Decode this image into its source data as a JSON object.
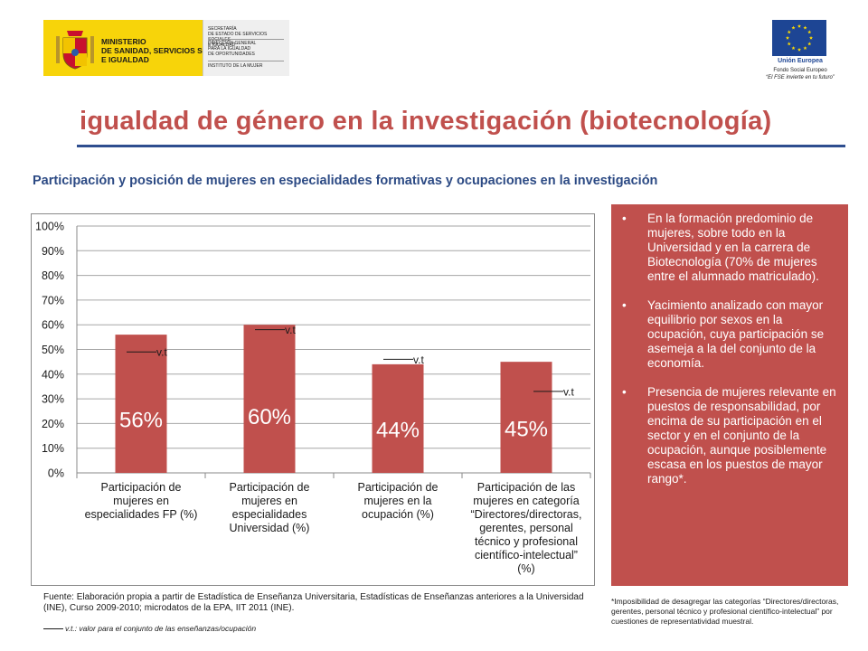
{
  "header": {
    "ministry": {
      "lines": [
        "MINISTERIO",
        "DE SANIDAD, SERVICIOS SOCIALES",
        "E IGUALDAD"
      ],
      "secretaria": [
        "SECRETARÍA",
        "DE ESTADO DE SERVICIOS SOCIALES",
        "E IGUALDAD"
      ],
      "direccion": [
        "DIRECCIÓN GENERAL",
        "PARA LA IGUALDAD",
        "DE OPORTUNIDADES"
      ],
      "instituto": "INSTITUTO DE LA MUJER",
      "color": "#f7d40a"
    },
    "eu": {
      "name": "Unión Europea",
      "fund": "Fondo Social Europeo",
      "motto": "“El FSE invierte en tu futuro”",
      "flag_color": "#1d4594",
      "star_color": "#ffdd00"
    }
  },
  "title": "igualdad de género en la investigación (biotecnología)",
  "subtitle": "Participación y posición de mujeres en especialidades formativas y ocupaciones en la investigación",
  "chart_data": {
    "type": "bar",
    "categories": [
      [
        "Participación de",
        "mujeres en",
        "especialidades FP (%)"
      ],
      [
        "Participación de",
        "mujeres en",
        "especialidades",
        "Universidad (%)"
      ],
      [
        "Participación de",
        "mujeres en la",
        "ocupación (%)"
      ],
      [
        "Participación de las",
        "mujeres  en categoría",
        "“Directores/directoras,",
        "gerentes,  personal",
        "técnico y profesional",
        "científico-intelectual”",
        "(%)"
      ]
    ],
    "values": [
      56,
      60,
      44,
      45
    ],
    "data_labels": [
      "56%",
      "60%",
      "44%",
      "45%"
    ],
    "reference_values": [
      49,
      58,
      46,
      33
    ],
    "reference_label": "v.t",
    "yticks": [
      "0%",
      "10%",
      "20%",
      "30%",
      "40%",
      "50%",
      "60%",
      "70%",
      "80%",
      "90%",
      "100%"
    ],
    "ylim": [
      0,
      100
    ],
    "grid": true,
    "bar_color": "#c0504d"
  },
  "bullets": [
    "En la formación predominio de mujeres, sobre todo en la Universidad y en la carrera de Biotecnología (70% de mujeres entre el alumnado matriculado).",
    "Yacimiento analizado con mayor equilibrio por sexos en la ocupación, cuya participación se asemeja a la del conjunto de la economía.",
    "Presencia de mujeres relevante en puestos de responsabilidad, por encima de su participación en el sector y en el conjunto de la ocupación, aunque posiblemente escasa en los puestos de mayor rango*."
  ],
  "bullet_glyph": "•",
  "panel_color": "#c0504d",
  "source": "Fuente: Elaboración propia a partir de Estadística de Enseñanza Universitaria, Estadísticas de Enseñanzas anteriores a la Universidad (INE), Curso 2009-2010; microdatos de la EPA, IIT 2011 (INE).",
  "legend_note": "v.t.: valor para el conjunto de las enseñanzas/ocupación",
  "footnote": "*Imposibilidad de desagregar las categorías “Directores/directoras, gerentes, personal técnico y profesional científico-intelectual” por cuestiones de representatividad muestral."
}
